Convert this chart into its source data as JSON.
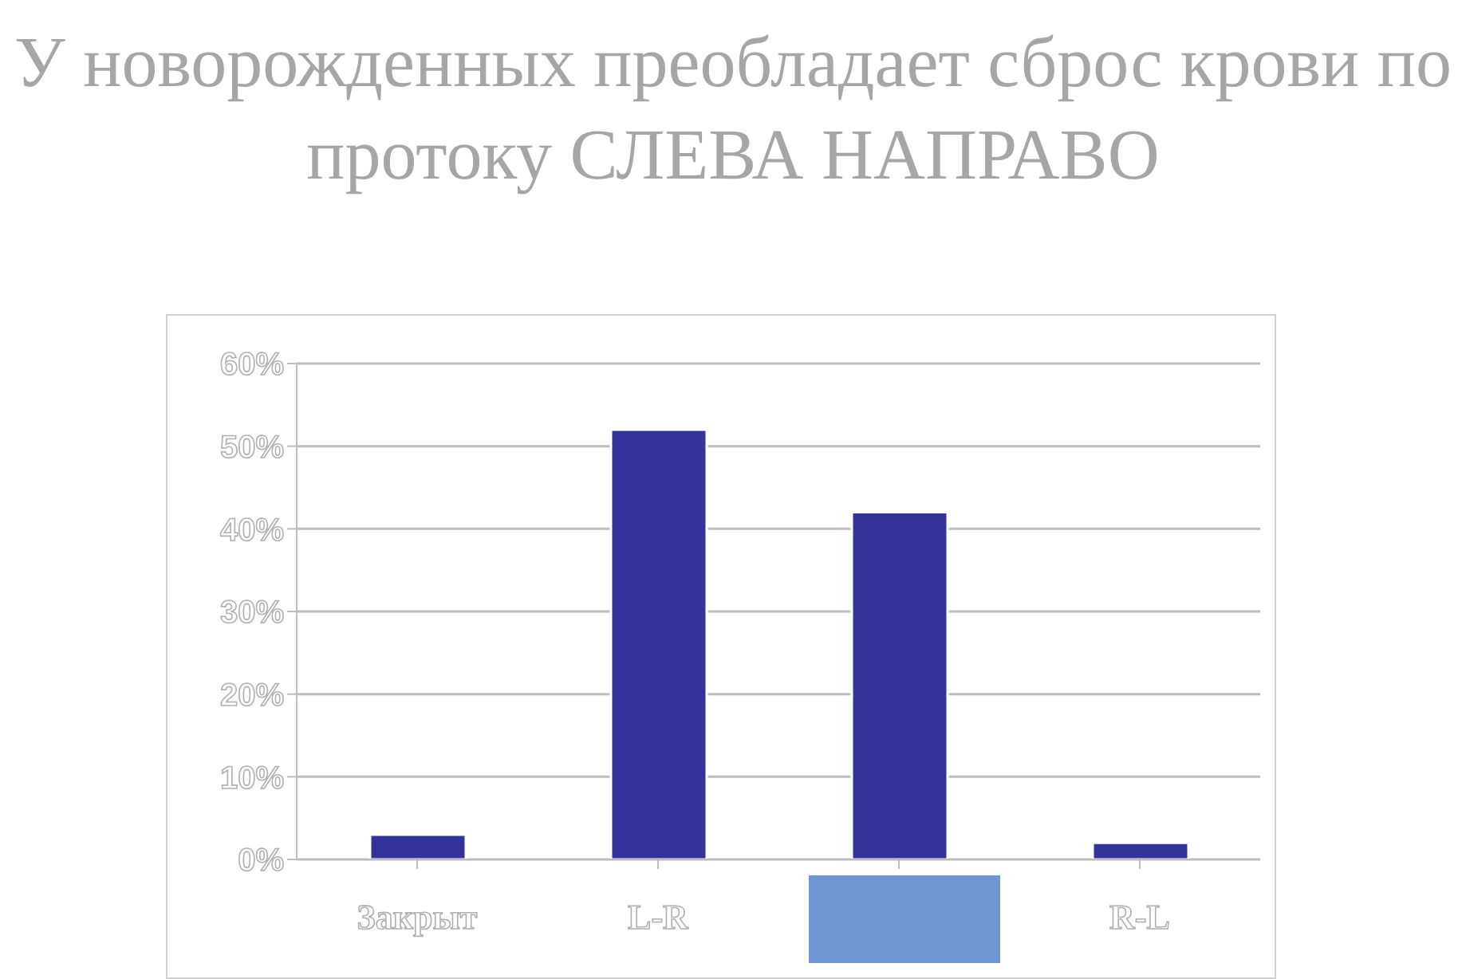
{
  "chart_data": {
    "type": "bar",
    "title": "У новорожденных преобладает сброс крови по протоку СЛЕВА НАПРАВО",
    "categories": [
      "Закрыт",
      "L-R",
      null,
      "R-L"
    ],
    "values": [
      3,
      52,
      42,
      2
    ],
    "color": "#333399",
    "ylim": [
      0,
      60
    ],
    "yticks": [
      {
        "value": 0,
        "label": "0%"
      },
      {
        "value": 10,
        "label": "10%"
      },
      {
        "value": 20,
        "label": "20%"
      },
      {
        "value": 30,
        "label": "30%"
      },
      {
        "value": 40,
        "label": "40%"
      },
      {
        "value": 50,
        "label": "50%"
      },
      {
        "value": 60,
        "label": "60%"
      }
    ],
    "grid": "y"
  }
}
